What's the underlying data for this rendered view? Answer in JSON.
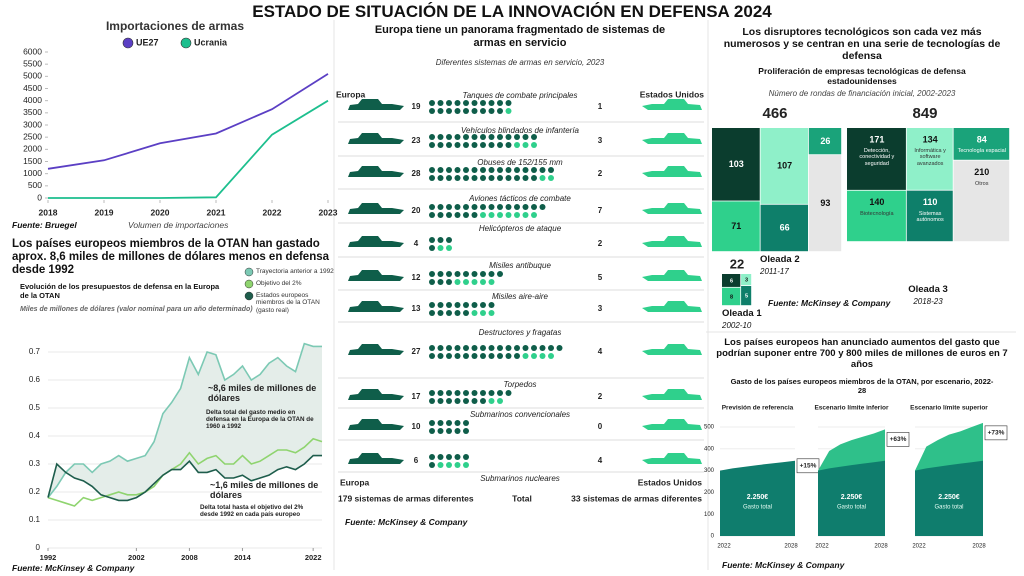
{
  "title": "ESTADO DE SITUACIÓN DE LA INNOVACIÓN EN DEFENSA 2024",
  "chart_data": [
    {
      "type": "line",
      "title": "Importaciones de armas",
      "x_label": "Volumen de importaciones",
      "source": "Fuente: Bruegel",
      "x": [
        2018,
        2019,
        2020,
        2021,
        2022,
        2023
      ],
      "xlim": [
        2018,
        2023
      ],
      "xticks": [
        2018,
        2019,
        2020,
        2021,
        2022,
        2023
      ],
      "ylim": [
        0,
        6000
      ],
      "yticks": [
        0,
        500,
        1000,
        1500,
        2000,
        2500,
        3000,
        3500,
        4000,
        4500,
        5000,
        5500,
        6000
      ],
      "series": [
        {
          "name": "UE27",
          "color": "#5b3fc4",
          "values": [
            1200,
            1550,
            2250,
            2650,
            3650,
            5100
          ]
        },
        {
          "name": "Ucrania",
          "color": "#1dbf8e",
          "values": [
            0,
            0,
            0,
            30,
            2600,
            4000
          ]
        }
      ]
    },
    {
      "type": "line",
      "title": "Los países europeos miembros de la OTAN han gastado aprox. 8,6 miles de millones de dólares menos en defensa desde 1992",
      "subtitle": "Evolución de los presupuestos de defensa en la Europa de la OTAN",
      "y_label": "Miles de millones de dólares (valor nominal para un año determinado)",
      "source": "Fuente: McKinsey & Company",
      "grid": true,
      "x": [
        1992,
        1993,
        1994,
        1995,
        1996,
        1997,
        1998,
        1999,
        2000,
        2001,
        2002,
        2003,
        2004,
        2005,
        2006,
        2007,
        2008,
        2009,
        2010,
        2011,
        2012,
        2013,
        2014,
        2015,
        2016,
        2017,
        2018,
        2019,
        2020,
        2021,
        2022,
        2023
      ],
      "xlim": [
        1992,
        2023
      ],
      "xticks": [
        1992,
        2002,
        2008,
        2014,
        2022
      ],
      "ylim": [
        0,
        0.75
      ],
      "yticks": [
        0,
        0.1,
        0.2,
        0.3,
        0.4,
        0.5,
        0.6,
        0.7
      ],
      "series": [
        {
          "name": "Trayectoria anterior a 1992",
          "color": "#7cc9b4",
          "values": [
            0.18,
            0.22,
            0.27,
            0.3,
            0.3,
            0.27,
            0.3,
            0.31,
            0.33,
            0.31,
            0.32,
            0.33,
            0.38,
            0.48,
            0.52,
            0.57,
            0.68,
            0.62,
            0.7,
            0.69,
            0.6,
            0.62,
            0.65,
            0.6,
            0.62,
            0.66,
            0.68,
            0.65,
            0.63,
            0.73,
            0.72,
            0.72
          ]
        },
        {
          "name": "Objetivo del 2%",
          "color": "#8fd46f",
          "values": [
            0.18,
            0.17,
            0.16,
            0.15,
            0.18,
            0.17,
            0.18,
            0.19,
            0.2,
            0.19,
            0.19,
            0.2,
            0.22,
            0.26,
            0.28,
            0.3,
            0.34,
            0.3,
            0.32,
            0.33,
            0.3,
            0.3,
            0.33,
            0.3,
            0.31,
            0.33,
            0.35,
            0.35,
            0.34,
            0.36,
            0.39,
            0.38
          ]
        },
        {
          "name": "Estados europeos miembros de la OTAN (gasto real)",
          "color": "#1e5d4c",
          "values": [
            0.18,
            0.3,
            0.27,
            0.25,
            0.24,
            0.22,
            0.19,
            0.18,
            0.17,
            0.17,
            0.18,
            0.2,
            0.23,
            0.26,
            0.28,
            0.28,
            0.31,
            0.27,
            0.27,
            0.28,
            0.25,
            0.25,
            0.26,
            0.24,
            0.25,
            0.26,
            0.28,
            0.29,
            0.28,
            0.3,
            0.33,
            0.33
          ]
        }
      ],
      "annotations": [
        "~8,6 miles de millones de dólares",
        "Delta total del gasto medio en defensa en la Europa de la OTAN de 1960 a 1992",
        "~1,6 miles de millones de dólares",
        "Delta total hasta el objetivo del 2% desde 1992 en cada país europeo"
      ]
    },
    {
      "type": "dots",
      "title": "Europa tiene un panorama fragmentado de sistemas de armas en servicio",
      "subtitle": "Diferentes sistemas de armas en servicio, 2023",
      "source": "Fuente: McKinsey & Company",
      "categories": [
        "Tanques de combate principales",
        "Vehículos blindados de infantería",
        "Obuses de 152/155 mm",
        "Aviones tácticos de combate",
        "Helicópteros de ataque",
        "Misiles antibuque",
        "Misiles aire-aire",
        "Destructores y fragatas",
        "Torpedos",
        "Submarinos convencionales",
        "Submarinos nucleares"
      ],
      "series": [
        {
          "name": "Europa",
          "color": "#0f5e4a",
          "values": [
            19,
            23,
            28,
            20,
            4,
            12,
            13,
            27,
            17,
            10,
            6
          ]
        },
        {
          "name": "Estados Unidos",
          "color": "#2fd08c",
          "values": [
            1,
            3,
            2,
            7,
            2,
            5,
            3,
            4,
            2,
            0,
            4
          ]
        }
      ],
      "totals": [
        "179 sistemas de armas diferentes",
        "Total",
        "33 sistemas de armas diferentes"
      ]
    },
    {
      "type": "treemap",
      "title": "Los disruptores tecnológicos son cada vez más numerosos y se centran en una serie de tecnologías de defensa",
      "subtitle": "Proliferación de empresas tecnológicas de defensa estadounidenses",
      "note": "Número de rondas de financiación inicial, 2002-2023",
      "source": "Fuente: McKinsey & Company",
      "groups": [
        {
          "label": "Oleada 1",
          "period": "2002-10",
          "total": 22
        },
        {
          "label": "Oleada 2",
          "period": "2011-17",
          "total": 466
        },
        {
          "label": "Oleada 3",
          "period": "2018-23",
          "total": 849
        }
      ],
      "series": [
        {
          "name": "Detección, conectividad y seguridad",
          "color": "#0b3d2e",
          "values": [
            6,
            103,
            171
          ]
        },
        {
          "name": "Biotecnología",
          "color": "#2fd08c",
          "values": [
            8,
            71,
            140
          ]
        },
        {
          "name": "Informática y software avanzados",
          "color": "#8ff0c9",
          "values": [
            3,
            107,
            134
          ]
        },
        {
          "name": "Sistemas autónomos",
          "color": "#0e7f6a",
          "values": [
            5,
            66,
            110
          ]
        },
        {
          "name": "Tecnología espacial",
          "color": "#1aa37a",
          "values": [
            0,
            26,
            84
          ]
        },
        {
          "name": "Otros",
          "color": "#e6e6e6",
          "values": [
            0,
            93,
            210
          ]
        }
      ]
    },
    {
      "type": "area",
      "title": "Los países europeos han anunciado aumentos del gasto que podrían suponer entre 700 y 800 miles de millones de euros en 7 años",
      "subtitle": "Gasto de los países europeos miembros de la OTAN, por escenario, 2022-28",
      "source": "Fuente: McKinsey & Company",
      "x": [
        2022,
        2023,
        2024,
        2025,
        2026,
        2027,
        2028
      ],
      "xlim": [
        2022,
        2028
      ],
      "xticks": [
        2022,
        2028
      ],
      "ylim": [
        0,
        500
      ],
      "yticks": [
        0,
        100,
        200,
        300,
        400,
        500
      ],
      "area_label": "2.250€",
      "area_sublabel": "Gasto total",
      "base_color": "#0f7d6d",
      "extra_color": "#2fc08a",
      "baseline": [
        300,
        310,
        318,
        325,
        332,
        338,
        345
      ],
      "panels": [
        {
          "title": "Previsión de referencia",
          "change_label": "+15%"
        },
        {
          "title": "Escenario límite inferior",
          "change_label": "+63%",
          "values": [
            300,
            390,
            420,
            440,
            455,
            470,
            489
          ]
        },
        {
          "title": "Escenario límite superior",
          "change_label": "+73%",
          "values": [
            300,
            410,
            440,
            465,
            480,
            500,
            519
          ]
        }
      ]
    }
  ]
}
